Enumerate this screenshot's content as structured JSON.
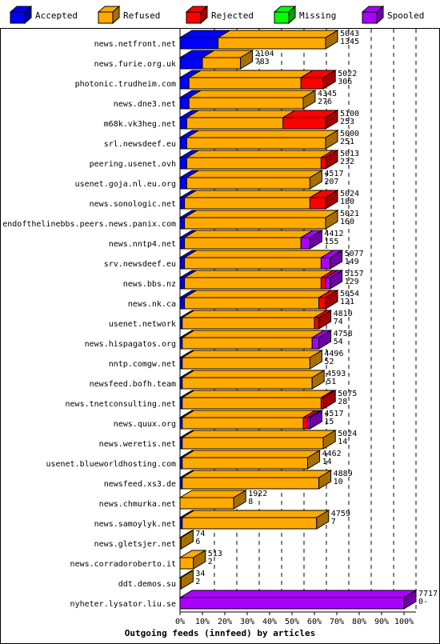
{
  "chart_data": {
    "type": "bar",
    "orientation": "horizontal",
    "stacked": true,
    "title": "Outgoing feeds (innfeed) by articles",
    "x_ticks": [
      "0%",
      "10%",
      "20%",
      "30%",
      "40%",
      "50%",
      "60%",
      "70%",
      "80%",
      "90%",
      "100%"
    ],
    "xlim": [
      0,
      100
    ],
    "grid": true,
    "legend": "top",
    "colors": {
      "Accepted": "#0000ff",
      "Refused": "#ffaa00",
      "Rejected": "#ff0000",
      "Missing": "#00ff00",
      "Spooled": "#aa00ff"
    },
    "series": [
      {
        "name": "Accepted"
      },
      {
        "name": "Refused"
      },
      {
        "name": "Rejected"
      },
      {
        "name": "Missing"
      },
      {
        "name": "Spooled"
      }
    ],
    "rows": [
      {
        "label": "news.netfront.net",
        "total": "5043",
        "spooled_count": "1345",
        "pct": {
          "Accepted": 17,
          "Refused": 48,
          "Rejected": 0,
          "Missing": 0,
          "Spooled": 0
        }
      },
      {
        "label": "news.furie.org.uk",
        "total": "2104",
        "spooled_count": "783",
        "pct": {
          "Accepted": 10,
          "Refused": 17,
          "Rejected": 0,
          "Missing": 0,
          "Spooled": 0
        }
      },
      {
        "label": "photonic.trudheim.com",
        "total": "5022",
        "spooled_count": "306",
        "pct": {
          "Accepted": 4,
          "Refused": 50,
          "Rejected": 10,
          "Missing": 0,
          "Spooled": 0
        }
      },
      {
        "label": "news.dne3.net",
        "total": "4345",
        "spooled_count": "276",
        "pct": {
          "Accepted": 4,
          "Refused": 51,
          "Rejected": 0,
          "Missing": 0,
          "Spooled": 0
        }
      },
      {
        "label": "m68k.vk3heg.net",
        "total": "5100",
        "spooled_count": "253",
        "pct": {
          "Accepted": 3,
          "Refused": 43,
          "Rejected": 19,
          "Missing": 0,
          "Spooled": 0
        }
      },
      {
        "label": "srl.newsdeef.eu",
        "total": "5000",
        "spooled_count": "251",
        "pct": {
          "Accepted": 3,
          "Refused": 62,
          "Rejected": 0,
          "Missing": 0,
          "Spooled": 0
        }
      },
      {
        "label": "peering.usenet.ovh",
        "total": "5013",
        "spooled_count": "232",
        "pct": {
          "Accepted": 3,
          "Refused": 60,
          "Rejected": 2,
          "Missing": 0,
          "Spooled": 0
        }
      },
      {
        "label": "usenet.goja.nl.eu.org",
        "total": "4517",
        "spooled_count": "207",
        "pct": {
          "Accepted": 3,
          "Refused": 55,
          "Rejected": 0,
          "Missing": 0,
          "Spooled": 0
        }
      },
      {
        "label": "news.sonologic.net",
        "total": "5024",
        "spooled_count": "180",
        "pct": {
          "Accepted": 2,
          "Refused": 56,
          "Rejected": 7,
          "Missing": 0,
          "Spooled": 0
        }
      },
      {
        "label": "endofthelinebbs.peers.news.panix.com",
        "total": "5021",
        "spooled_count": "160",
        "pct": {
          "Accepted": 2,
          "Refused": 63,
          "Rejected": 0,
          "Missing": 0,
          "Spooled": 0
        }
      },
      {
        "label": "news.nntp4.net",
        "total": "4412",
        "spooled_count": "155",
        "pct": {
          "Accepted": 2,
          "Refused": 52,
          "Rejected": 0,
          "Missing": 0,
          "Spooled": 4
        }
      },
      {
        "label": "srv.newsdeef.eu",
        "total": "5077",
        "spooled_count": "149",
        "pct": {
          "Accepted": 2,
          "Refused": 61,
          "Rejected": 0,
          "Missing": 0,
          "Spooled": 4
        }
      },
      {
        "label": "news.bbs.nz",
        "total": "5157",
        "spooled_count": "129",
        "pct": {
          "Accepted": 2,
          "Refused": 61,
          "Rejected": 2,
          "Missing": 0,
          "Spooled": 2
        }
      },
      {
        "label": "news.nk.ca",
        "total": "5054",
        "spooled_count": "121",
        "pct": {
          "Accepted": 2,
          "Refused": 60,
          "Rejected": 3,
          "Missing": 0,
          "Spooled": 0
        }
      },
      {
        "label": "usenet.network",
        "total": "4810",
        "spooled_count": "74",
        "pct": {
          "Accepted": 1,
          "Refused": 59,
          "Rejected": 2,
          "Missing": 0,
          "Spooled": 0
        }
      },
      {
        "label": "news.hispagatos.org",
        "total": "4758",
        "spooled_count": "54",
        "pct": {
          "Accepted": 1,
          "Refused": 58,
          "Rejected": 0,
          "Missing": 0,
          "Spooled": 3
        }
      },
      {
        "label": "nntp.comgw.net",
        "total": "4496",
        "spooled_count": "52",
        "pct": {
          "Accepted": 1,
          "Refused": 57,
          "Rejected": 0,
          "Missing": 0,
          "Spooled": 0
        }
      },
      {
        "label": "newsfeed.bofh.team",
        "total": "4593",
        "spooled_count": "51",
        "pct": {
          "Accepted": 1,
          "Refused": 58,
          "Rejected": 0,
          "Missing": 0,
          "Spooled": 0
        }
      },
      {
        "label": "news.tnetconsulting.net",
        "total": "5075",
        "spooled_count": "28",
        "pct": {
          "Accepted": 1,
          "Refused": 62,
          "Rejected": 1,
          "Missing": 0,
          "Spooled": 0
        }
      },
      {
        "label": "news.quux.org",
        "total": "4517",
        "spooled_count": "15",
        "pct": {
          "Accepted": 1,
          "Refused": 54,
          "Rejected": 2,
          "Missing": 0,
          "Spooled": 1
        }
      },
      {
        "label": "news.weretis.net",
        "total": "5024",
        "spooled_count": "14",
        "pct": {
          "Accepted": 1,
          "Refused": 63,
          "Rejected": 0,
          "Missing": 0,
          "Spooled": 0
        }
      },
      {
        "label": "usenet.blueworldhosting.com",
        "total": "4462",
        "spooled_count": "14",
        "pct": {
          "Accepted": 1,
          "Refused": 56,
          "Rejected": 0,
          "Missing": 0,
          "Spooled": 0
        }
      },
      {
        "label": "newsfeed.xs3.de",
        "total": "4889",
        "spooled_count": "10",
        "pct": {
          "Accepted": 1,
          "Refused": 61,
          "Rejected": 0,
          "Missing": 0,
          "Spooled": 0
        }
      },
      {
        "label": "news.chmurka.net",
        "total": "1922",
        "spooled_count": "8",
        "pct": {
          "Accepted": 0,
          "Refused": 24,
          "Rejected": 0,
          "Missing": 0,
          "Spooled": 0
        }
      },
      {
        "label": "news.samoylyk.net",
        "total": "4759",
        "spooled_count": "7",
        "pct": {
          "Accepted": 1,
          "Refused": 60,
          "Rejected": 0,
          "Missing": 0,
          "Spooled": 0
        }
      },
      {
        "label": "news.gletsjer.net",
        "total": "74",
        "spooled_count": "6",
        "pct": {
          "Accepted": 0,
          "Refused": 0,
          "Rejected": 0,
          "Missing": 0,
          "Spooled": 0
        }
      },
      {
        "label": "news.corradoroberto.it",
        "total": "513",
        "spooled_count": "2",
        "pct": {
          "Accepted": 0,
          "Refused": 6,
          "Rejected": 0,
          "Missing": 0,
          "Spooled": 0
        }
      },
      {
        "label": "ddt.demos.su",
        "total": "34",
        "spooled_count": "2",
        "pct": {
          "Accepted": 0,
          "Refused": 0,
          "Rejected": 0,
          "Missing": 0,
          "Spooled": 0
        }
      },
      {
        "label": "nyheter.lysator.liu.se",
        "total": "7717",
        "spooled_count": "0",
        "pct": {
          "Accepted": 0,
          "Refused": 0,
          "Rejected": 0,
          "Missing": 0,
          "Spooled": 100
        }
      }
    ]
  }
}
